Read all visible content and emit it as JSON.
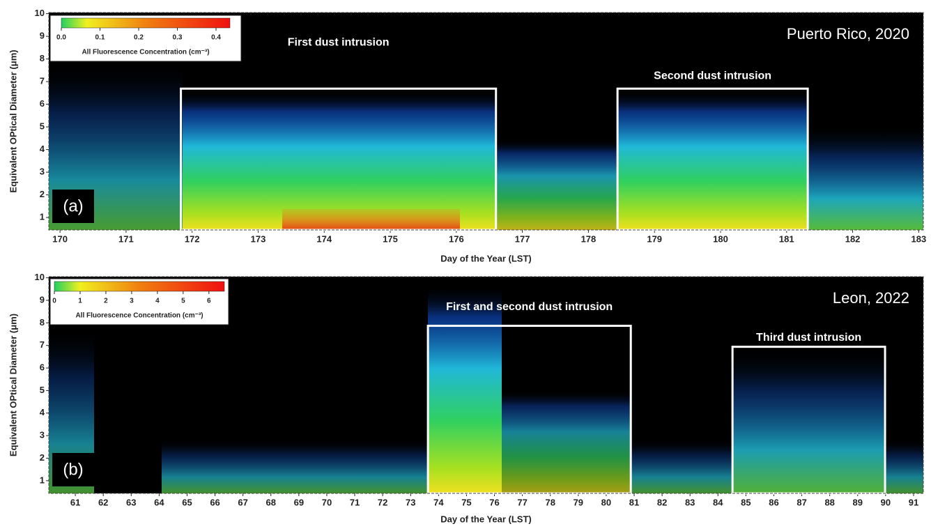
{
  "chart_data": [
    {
      "type": "heatmap",
      "title": "Puerto Rico, 2020",
      "panel_label": "(a)",
      "xlabel": "Day of the Year (LST)",
      "ylabel": "Equivalent OPtical Diameter (μm)",
      "xlim": [
        169.83,
        183.07
      ],
      "ylim": [
        0.45,
        10.05
      ],
      "xticks": [
        170,
        171,
        172,
        173,
        174,
        175,
        176,
        177,
        178,
        179,
        180,
        181,
        182,
        183
      ],
      "yticks": [
        1,
        2,
        3,
        4,
        5,
        6,
        7,
        8,
        9,
        10
      ],
      "colorbar": {
        "label": "All Fluorescence Concentration (cm⁻³)",
        "lim": [
          0,
          0.436
        ],
        "ticks": [
          {
            "value": 0,
            "label": "0.0"
          },
          0.1,
          0.2,
          0.3,
          0.4
        ]
      },
      "highlights": [
        {
          "label": "First dust intrusion",
          "x": [
            171.83,
            176.6
          ],
          "y": [
            0.45,
            6.69
          ]
        },
        {
          "label": "Second dust intrusion",
          "x": [
            178.44,
            181.32
          ],
          "y": [
            0.45,
            6.69
          ]
        }
      ]
    },
    {
      "type": "heatmap",
      "title": "Leon, 2022",
      "panel_label": "(b)",
      "xlabel": "Day of the Year (LST)",
      "ylabel": "Equivalent OPtical Diameter (μm)",
      "xlim": [
        60.05,
        91.35
      ],
      "ylim": [
        0.44,
        10.05
      ],
      "xticks": [
        61,
        62,
        63,
        64,
        65,
        66,
        67,
        68,
        69,
        70,
        71,
        72,
        73,
        74,
        75,
        76,
        77,
        78,
        79,
        80,
        81,
        82,
        83,
        84,
        85,
        86,
        87,
        88,
        89,
        90,
        91
      ],
      "yticks": [
        1,
        2,
        3,
        4,
        5,
        6,
        7,
        8,
        9,
        10
      ],
      "colorbar": {
        "label": "All Fluorescence Concentration (cm⁻³)",
        "lim": [
          0,
          6.6
        ],
        "ticks": [
          0,
          1,
          2,
          3,
          4,
          5,
          6
        ]
      },
      "highlights": [
        {
          "label": "First and second dust intrusion",
          "x": [
            73.62,
            80.88
          ],
          "y": [
            0.44,
            7.87
          ]
        },
        {
          "label": "Third dust intrusion",
          "x": [
            84.52,
            89.98
          ],
          "y": [
            0.44,
            6.94
          ]
        }
      ]
    }
  ]
}
